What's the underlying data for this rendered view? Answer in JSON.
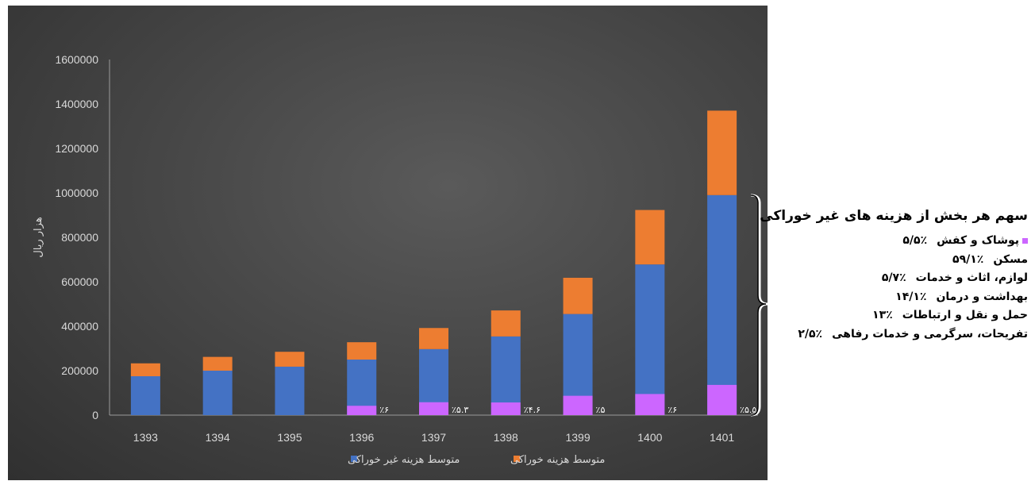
{
  "chart_data": {
    "type": "bar",
    "stacked": true,
    "categories": [
      "1393",
      "1394",
      "1395",
      "1396",
      "1397",
      "1398",
      "1399",
      "1400",
      "1401"
    ],
    "series": [
      {
        "name": "متوسط هزینه غیر خوراکی",
        "color": "#4472c4",
        "values": [
          175000,
          200000,
          218000,
          250000,
          297000,
          354000,
          455000,
          678000,
          990000
        ]
      },
      {
        "name": "متوسط هزینه خوراکی",
        "color": "#ed7d31",
        "values": [
          58000,
          62000,
          67000,
          78000,
          95000,
          117000,
          163000,
          245000,
          380000
        ]
      }
    ],
    "overlay": {
      "color": "#cc66ff",
      "description_series_index": 0,
      "values": [
        null,
        null,
        null,
        42000,
        58000,
        57000,
        87000,
        95000,
        136000
      ],
      "labels": [
        "",
        "",
        "",
        "٪۶",
        "٪۵.۳",
        "٪۴.۶",
        "٪۵",
        "٪۶",
        "٪۵.۵"
      ]
    },
    "ylabel": "هزار ریال",
    "ylim": [
      0,
      1600000
    ],
    "yticks": [
      "0",
      "200000",
      "400000",
      "600000",
      "800000",
      "1000000",
      "1200000",
      "1400000",
      "1600000"
    ],
    "grid": false,
    "legend_position": "bottom"
  },
  "note": {
    "title": "سهم هر بخش از هزینه های غیر خوراکی",
    "items": [
      {
        "label": "پوشاک و کفش",
        "value": "٪۵/۵",
        "marker": true
      },
      {
        "label": "مسکن",
        "value": "٪۵۹/۱",
        "marker": false
      },
      {
        "label": "لوازم، اثاث و خدمات",
        "value": "٪۵/۷",
        "marker": false
      },
      {
        "label": "بهداشت و درمان",
        "value": "٪۱۴/۱",
        "marker": false
      },
      {
        "label": "حمل و نقل و ارتباطات",
        "value": "٪۱۳",
        "marker": false
      },
      {
        "label": "تفریحات، سرگرمی و خدمات رفاهی",
        "value": "٪۲/۵",
        "marker": false
      }
    ],
    "marker_color": "#cc66ff"
  }
}
